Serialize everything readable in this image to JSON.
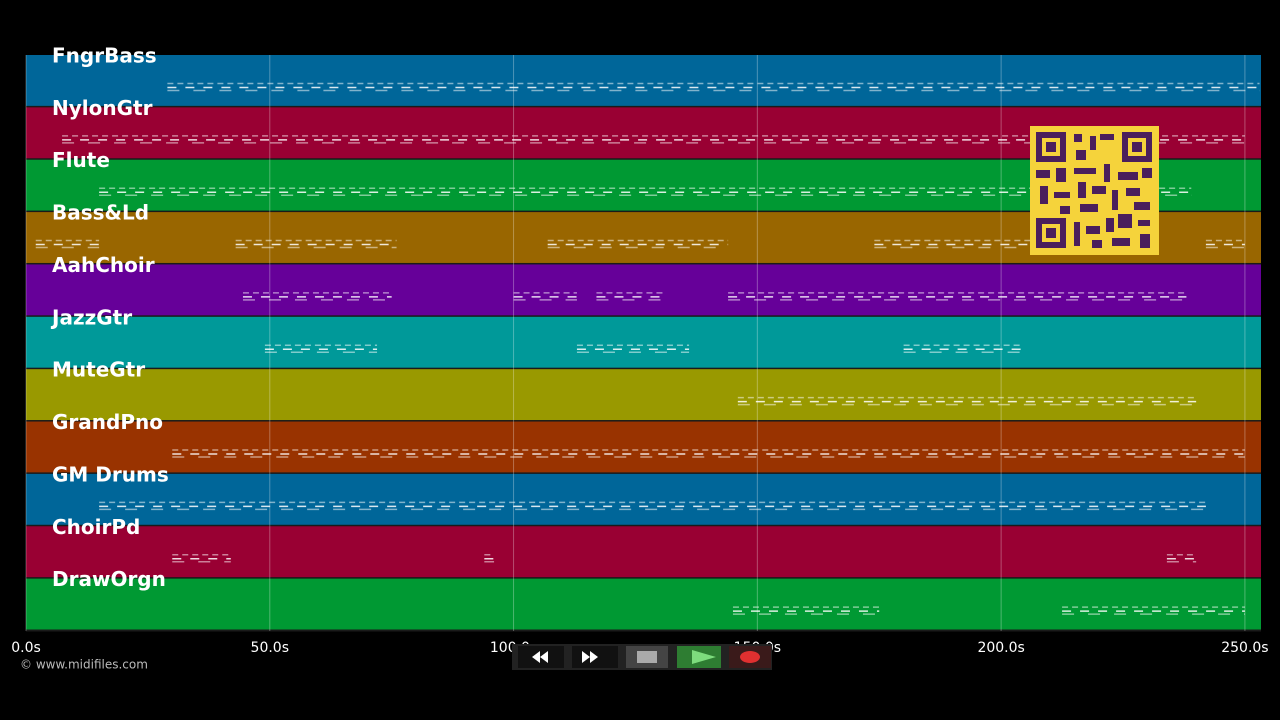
{
  "tracks": [
    {
      "name": "FngrBass",
      "color": "#006699",
      "notes": [
        [
          29,
          253
        ]
      ]
    },
    {
      "name": "NylonGtr",
      "color": "#990033",
      "notes": [
        [
          7.4,
          250
        ]
      ]
    },
    {
      "name": "Flute",
      "color": "#009933",
      "notes": [
        [
          15,
          239
        ]
      ]
    },
    {
      "name": "Bass&Ld",
      "color": "#996600",
      "notes": [
        [
          2,
          15
        ],
        [
          43,
          76
        ],
        [
          107,
          144
        ],
        [
          174,
          206
        ],
        [
          242,
          250
        ]
      ]
    },
    {
      "name": "AahChoir",
      "color": "#660099",
      "notes": [
        [
          44.5,
          75
        ],
        [
          100,
          113
        ],
        [
          117,
          131
        ],
        [
          144,
          238
        ]
      ]
    },
    {
      "name": "JazzGtr",
      "color": "#009999",
      "notes": [
        [
          49,
          72
        ],
        [
          113,
          136
        ],
        [
          180,
          204
        ]
      ]
    },
    {
      "name": "MuteGtr",
      "color": "#999900",
      "notes": [
        [
          146,
          240
        ]
      ]
    },
    {
      "name": "GrandPno",
      "color": "#993300",
      "notes": [
        [
          30,
          250
        ]
      ]
    },
    {
      "name": "GM Drums",
      "color": "#006699",
      "notes": [
        [
          15,
          242
        ]
      ]
    },
    {
      "name": "ChoirPd",
      "color": "#990033",
      "notes": [
        [
          30,
          42
        ],
        [
          94,
          96
        ],
        [
          234,
          240
        ]
      ]
    },
    {
      "name": "DrawOrgn",
      "color": "#009933",
      "notes": [
        [
          145,
          175
        ],
        [
          212.5,
          250
        ]
      ]
    }
  ],
  "time_axis": {
    "xlim": [
      0,
      253.3
    ],
    "ticks": [
      {
        "value": 0,
        "label": "0.0s"
      },
      {
        "value": 50,
        "label": "50.0s"
      },
      {
        "value": 100,
        "label": "100.0s"
      },
      {
        "value": 150,
        "label": "150.0s"
      },
      {
        "value": 200,
        "label": "200.0s"
      },
      {
        "value": 250,
        "label": "250.0s"
      }
    ]
  },
  "credit": "© www.midifiles.com"
}
